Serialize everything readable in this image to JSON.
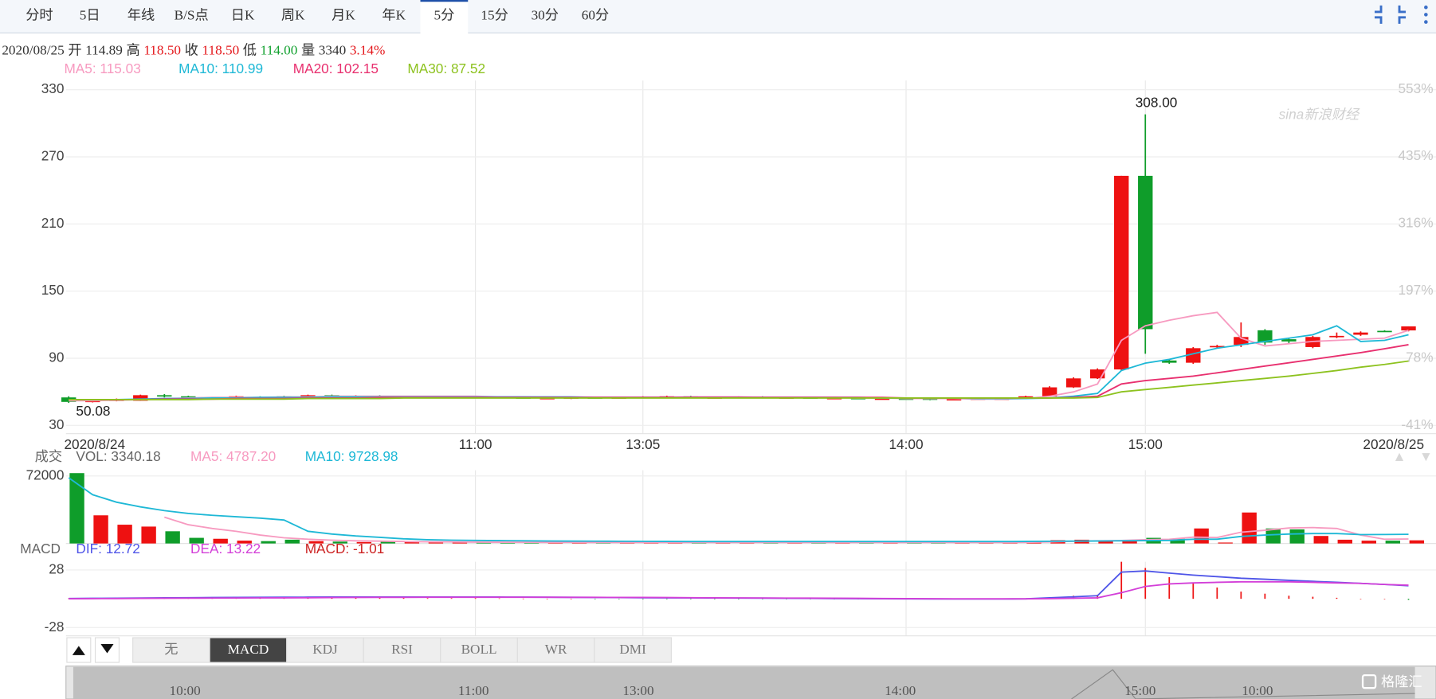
{
  "tabs": [
    "分时",
    "5日",
    "年线",
    "B/S点",
    "日K",
    "周K",
    "月K",
    "年K",
    "5分",
    "15分",
    "30分",
    "60分"
  ],
  "selected_tab_index": 8,
  "quote": {
    "date": "2020/08/25",
    "items": [
      {
        "label": "开",
        "value": "114.89",
        "color": "#333333"
      },
      {
        "label": "高",
        "value": "118.50",
        "color": "#e4161a"
      },
      {
        "label": "收",
        "value": "118.50",
        "color": "#e4161a"
      },
      {
        "label": "低",
        "value": "114.00",
        "color": "#12a12f"
      },
      {
        "label": "量",
        "value": "3340",
        "color": "#333333"
      }
    ],
    "change": "3.14%",
    "change_color": "#e4161a"
  },
  "indicator_tabs": [
    "无",
    "MACD",
    "KDJ",
    "RSI",
    "BOLL",
    "WR",
    "DMI"
  ],
  "selected_indicator_index": 1,
  "navigator_labels": [
    "10:00",
    "11:00",
    "13:00",
    "14:00",
    "15:00",
    "10:00"
  ],
  "watermarks": [
    "sina新浪财经",
    "格隆汇"
  ],
  "chart_data": [
    {
      "type": "candlestick",
      "categories": [
        "2020/8/24",
        null,
        null,
        null,
        null,
        null,
        null,
        null,
        null,
        null,
        null,
        null,
        null,
        null,
        null,
        null,
        null,
        "11:00",
        null,
        null,
        null,
        null,
        null,
        null,
        "13:05",
        null,
        null,
        null,
        null,
        null,
        null,
        null,
        null,
        null,
        null,
        "14:00",
        null,
        null,
        null,
        null,
        null,
        null,
        null,
        null,
        null,
        "15:00",
        null,
        null,
        null,
        null,
        null,
        null,
        null,
        null,
        null,
        null,
        "2020/8/25"
      ],
      "open": [
        55,
        51,
        52,
        52,
        57,
        56,
        54,
        54,
        55.5,
        56,
        55,
        57,
        56,
        56.5,
        56,
        55.5,
        55,
        56,
        55.5,
        55,
        54.5,
        54,
        55,
        54.5,
        55,
        55.5,
        56,
        55,
        55,
        55.5,
        55,
        55,
        54.5,
        54.5,
        54,
        54,
        54,
        53,
        53.5,
        54,
        54,
        56,
        64,
        72,
        80,
        253,
        88,
        86,
        100,
        102,
        115,
        107,
        100,
        109,
        111,
        114.5,
        114.89
      ],
      "high": [
        56,
        53,
        54,
        57.5,
        58,
        56.5,
        55,
        56.5,
        56,
        56.5,
        57.5,
        57.5,
        57,
        57,
        56.5,
        56,
        56.5,
        56.5,
        56,
        55.5,
        55,
        55.5,
        55.5,
        55.5,
        56,
        56.5,
        56.5,
        55.5,
        56,
        56,
        55.5,
        55.5,
        55,
        55,
        54.5,
        54.5,
        54.5,
        54,
        54.5,
        54.5,
        56.5,
        65,
        73,
        81,
        253,
        308,
        89,
        100,
        102,
        122,
        116,
        108,
        110,
        113,
        114,
        115,
        118.5
      ],
      "low": [
        50.08,
        50.5,
        51.5,
        52,
        55,
        53.5,
        53.5,
        53.5,
        54.5,
        54.5,
        54.5,
        55.5,
        55.5,
        55.5,
        55.5,
        55,
        54.5,
        55,
        54.5,
        54,
        54,
        53.5,
        54,
        54,
        54.5,
        55,
        54.5,
        54.5,
        54.5,
        54.5,
        54.5,
        54,
        54,
        53.5,
        53.5,
        53,
        52.5,
        52.5,
        53,
        53.5,
        53.5,
        55.5,
        63.5,
        71.5,
        79,
        94,
        85,
        85,
        99,
        100,
        102,
        103,
        99,
        108,
        110,
        113.5,
        114
      ],
      "close": [
        51,
        52,
        53,
        57,
        56,
        54,
        54.5,
        56,
        55,
        55,
        57,
        56,
        56.5,
        56,
        56,
        55.5,
        56,
        55.5,
        55,
        54.5,
        54.5,
        55,
        54.5,
        55,
        55.5,
        56,
        55,
        55,
        55.5,
        55,
        55,
        54.5,
        54.5,
        54,
        54,
        53.5,
        53,
        53.5,
        54,
        54,
        56,
        64,
        72,
        80,
        253,
        116,
        86,
        99,
        101,
        109,
        104,
        105,
        109,
        110,
        113,
        114,
        118.5
      ],
      "up_color": "#ee1111",
      "down_color": "#0f9d2a",
      "series": [
        {
          "name": "MA5: 115.03",
          "color": "#f79ac0",
          "values": [
            52,
            52,
            52.5,
            53,
            54,
            54.5,
            55,
            55,
            55,
            55.5,
            55.5,
            56,
            56,
            56,
            56,
            56,
            56,
            56,
            55.5,
            55.5,
            55,
            55,
            55,
            55,
            55,
            55,
            55.5,
            55.5,
            55.5,
            55,
            55,
            55,
            55,
            54.5,
            54.5,
            54,
            54,
            54,
            53.5,
            53.5,
            54,
            56,
            60,
            67,
            106,
            119,
            124,
            128,
            131,
            108,
            101,
            103,
            105,
            106,
            107,
            108,
            115.03
          ]
        },
        {
          "name": "MA10: 110.99",
          "color": "#1eb8d6",
          "values": [
            53,
            53,
            53,
            53.5,
            54,
            54,
            54.5,
            54.5,
            55,
            55,
            55,
            55.5,
            55.5,
            55.5,
            55.5,
            55.5,
            55.5,
            55.5,
            55.5,
            55.5,
            55.5,
            55.5,
            55,
            55,
            55,
            55,
            55,
            55,
            55,
            55,
            55,
            55,
            55,
            55,
            54.5,
            54.5,
            54.5,
            54.5,
            54,
            54,
            54,
            54.5,
            56,
            58.6,
            79,
            85.6,
            89,
            94,
            99,
            102,
            105,
            108,
            111,
            119,
            105,
            106,
            110.99
          ]
        },
        {
          "name": "MA20: 102.15",
          "color": "#e8306f",
          "values": [
            53,
            53,
            53,
            53,
            53.5,
            53.5,
            53.5,
            54,
            54,
            54,
            54.5,
            54.5,
            54.5,
            55,
            55,
            55,
            55,
            55,
            55,
            55,
            55,
            55,
            55,
            55,
            55,
            55,
            55,
            55,
            55,
            55,
            55,
            55,
            55,
            55,
            55,
            54.5,
            54.5,
            54.5,
            54.5,
            54.5,
            54.5,
            54.5,
            55,
            56,
            67,
            70,
            72,
            74,
            77,
            80,
            83,
            86,
            89,
            92,
            95,
            98.5,
            102.15
          ]
        },
        {
          "name": "MA30: 87.52",
          "color": "#8dc21f",
          "values": [
            53,
            53,
            53,
            53,
            53,
            53,
            53.5,
            53.5,
            53.5,
            53.5,
            54,
            54,
            54,
            54,
            54.5,
            54.5,
            54.5,
            54.5,
            54.5,
            54.5,
            54.5,
            54.5,
            54.5,
            54.5,
            54.5,
            54.5,
            54.5,
            54.5,
            54.5,
            54.5,
            54.5,
            54.5,
            54.5,
            54.5,
            54.5,
            54.5,
            54.5,
            54.5,
            54.5,
            54.5,
            54.5,
            54.5,
            54.5,
            55,
            60,
            62,
            64,
            66,
            68,
            70,
            72,
            74,
            76.5,
            79,
            82,
            84.5,
            87.52
          ]
        }
      ],
      "annotations": [
        {
          "value": 308,
          "label": "308.00"
        },
        50.08
      ],
      "ylim": [
        22.6,
        338.2
      ],
      "yticks": [
        30,
        90,
        150,
        210,
        270,
        330
      ],
      "y2lim": [
        -55.6,
        569.2
      ],
      "y2ticks": [
        {
          "value": -41,
          "label": "-41%"
        },
        {
          "value": 78,
          "label": "78%"
        },
        {
          "value": 197,
          "label": "197%"
        },
        {
          "value": 316,
          "label": "316%"
        },
        {
          "value": 435,
          "label": "435%"
        },
        {
          "value": 553,
          "label": "553%"
        }
      ],
      "grid": true
    },
    {
      "type": "bar",
      "title": "成交",
      "series": [
        {
          "name": "VOL: 3340.18",
          "type": "bar",
          "color": "#666666",
          "values": [
            75000,
            30000,
            20000,
            18000,
            13000,
            6000,
            5000,
            3000,
            2500,
            4000,
            2500,
            2000,
            1500,
            2500,
            1500,
            1500,
            1500,
            1200,
            1200,
            1000,
            1200,
            1000,
            1000,
            1200,
            1000,
            1200,
            1000,
            1000,
            1000,
            1200,
            1000,
            1000,
            1000,
            1200,
            1000,
            1000,
            1000,
            1200,
            1000,
            1000,
            1500,
            3500,
            4000,
            3000,
            3500,
            6000,
            5000,
            16000,
            1000,
            33000,
            16000,
            15000,
            8000,
            4000,
            3000,
            3000,
            3340.18
          ]
        },
        {
          "name": "MA5: 4787.20",
          "type": "line",
          "color": "#f79ac0",
          "values": [
            null,
            null,
            null,
            null,
            28000,
            20000,
            16000,
            13000,
            9000,
            6000,
            4500,
            3500,
            2800,
            2500,
            2000,
            1800,
            1700,
            1500,
            1400,
            1300,
            1200,
            1200,
            1100,
            1100,
            1100,
            1100,
            1100,
            1100,
            1100,
            1100,
            1100,
            1100,
            1100,
            1100,
            1100,
            1100,
            1100,
            1100,
            1100,
            1100,
            1200,
            1700,
            2300,
            2800,
            3100,
            4000,
            4400,
            6700,
            6300,
            12000,
            14000,
            16500,
            17000,
            16000,
            9000,
            4500,
            4787.2
          ]
        },
        {
          "name": "MA10: 9728.98",
          "type": "line",
          "color": "#1eb8d6",
          "values": [
            70000,
            52000,
            44000,
            39000,
            35000,
            32000,
            30000,
            28500,
            27000,
            25000,
            13000,
            10000,
            8000,
            6500,
            5000,
            4000,
            3500,
            3200,
            3000,
            2800,
            2600,
            2500,
            2400,
            2300,
            2200,
            2100,
            2000,
            2000,
            2000,
            2000,
            2000,
            2000,
            2000,
            2000,
            2000,
            2000,
            2000,
            2000,
            2000,
            2000,
            2100,
            2300,
            2500,
            2600,
            2800,
            3000,
            3200,
            4500,
            4500,
            7500,
            9000,
            10000,
            10500,
            10500,
            9500,
            9600,
            9728.98
          ]
        }
      ],
      "ylim": [
        0,
        78000
      ],
      "yticks": [
        72000
      ],
      "grid": true
    },
    {
      "type": "bar",
      "title": "MACD",
      "series": [
        {
          "name": "DIF: 12.72",
          "type": "line",
          "color": "#4f55e8",
          "values": [
            0.3,
            0.4,
            0.5,
            0.8,
            1,
            1.1,
            1.2,
            1.3,
            1.4,
            1.5,
            1.6,
            1.7,
            1.7,
            1.8,
            1.8,
            1.8,
            1.8,
            1.8,
            1.7,
            1.6,
            1.5,
            1.4,
            1.3,
            1.2,
            1.1,
            1,
            0.9,
            0.8,
            0.7,
            0.6,
            0.5,
            0.4,
            0.3,
            0.2,
            0.1,
            0,
            -0.1,
            -0.2,
            -0.2,
            -0.2,
            0,
            1,
            2,
            3,
            26,
            27,
            25,
            23,
            21.5,
            20,
            19,
            18,
            17,
            16,
            15,
            14,
            12.72
          ]
        },
        {
          "name": "DEA: 13.22",
          "type": "line",
          "color": "#d33fd8",
          "values": [
            0.1,
            0.2,
            0.3,
            0.4,
            0.5,
            0.6,
            0.7,
            0.8,
            0.9,
            1,
            1.1,
            1.2,
            1.3,
            1.4,
            1.4,
            1.5,
            1.5,
            1.5,
            1.5,
            1.5,
            1.5,
            1.4,
            1.4,
            1.3,
            1.3,
            1.2,
            1.1,
            1,
            0.9,
            0.8,
            0.7,
            0.6,
            0.5,
            0.4,
            0.3,
            0.2,
            0.1,
            0,
            0,
            0,
            0,
            0.2,
            0.5,
            1,
            6,
            12,
            14.5,
            15.5,
            16,
            16.5,
            16.5,
            16.5,
            16,
            15.5,
            15,
            14,
            13.22
          ]
        },
        {
          "name": "MACD: -1.01",
          "type": "bar",
          "color": "#cc2222",
          "values": [
            0.4,
            0.4,
            0.4,
            0.8,
            1,
            1,
            1,
            1,
            1,
            1,
            1,
            1,
            0.8,
            0.8,
            0.8,
            0.6,
            0.6,
            0.6,
            0.4,
            0.2,
            0,
            0,
            -0.2,
            -0.2,
            -0.4,
            -0.4,
            -0.4,
            -0.4,
            -0.4,
            -0.4,
            -0.4,
            -0.4,
            -0.4,
            -0.4,
            -0.4,
            -0.4,
            -0.4,
            -0.4,
            -0.4,
            -0.4,
            0,
            1.6,
            3,
            4,
            36,
            30,
            21,
            15,
            11,
            7,
            5,
            3,
            2,
            1,
            0,
            0,
            -1.01
          ]
        }
      ],
      "ylim": [
        -36,
        36
      ],
      "yticks": [
        28,
        -28
      ],
      "grid": true
    }
  ]
}
